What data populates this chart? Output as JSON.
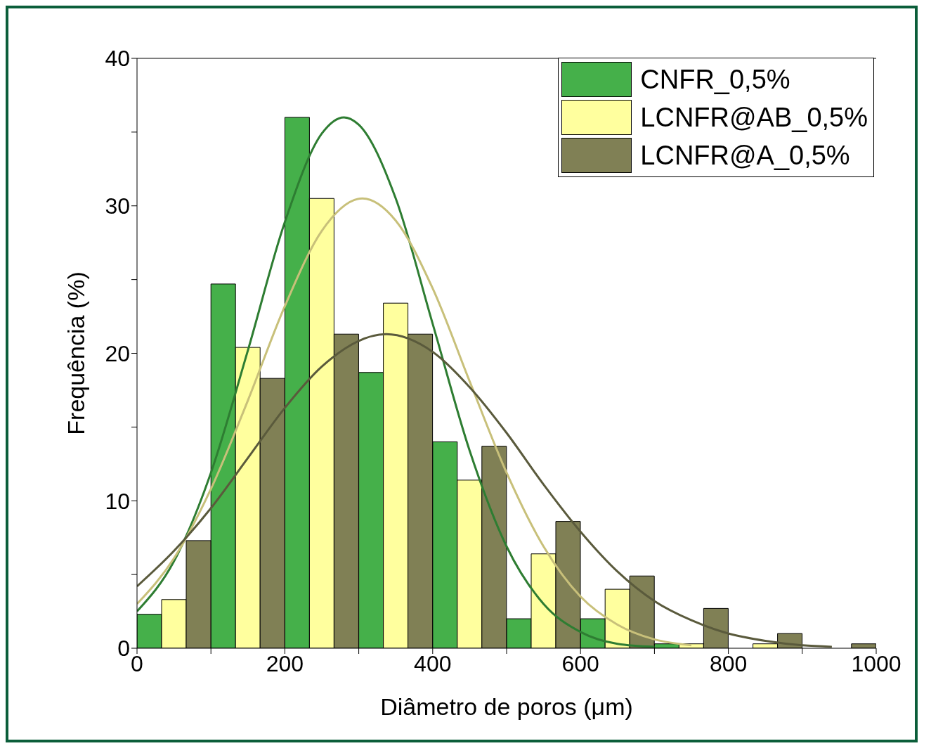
{
  "chart_data": {
    "type": "histogram",
    "xlabel": "Diâmetro de poros (μm)",
    "ylabel": "Frequência (%)",
    "bins": [
      0,
      100,
      200,
      300,
      400,
      500,
      600,
      700,
      800,
      900,
      1000
    ],
    "series": [
      {
        "name": "CNFR_0,5%",
        "color": "#45b04a",
        "values": [
          2.3,
          24.7,
          36,
          18.7,
          14,
          2,
          2,
          0.3,
          0,
          0
        ]
      },
      {
        "name": "LCNFR@AB_0,5%",
        "color": "#ffff9e",
        "values": [
          3.3,
          20.4,
          30.5,
          23.4,
          11.4,
          6.4,
          4,
          0.3,
          0.3,
          0
        ]
      },
      {
        "name": "LCNFR@A_0,5%",
        "color": "#808055",
        "values": [
          7.3,
          18.3,
          21.3,
          21.3,
          13.7,
          8.6,
          4.9,
          2.7,
          1,
          0.3
        ]
      },
      {
        "type": "line",
        "color": "#2e7d32",
        "x": [
          0,
          50,
          100,
          150,
          200,
          250,
          280,
          300,
          350,
          400,
          450,
          500,
          550,
          600,
          650,
          700
        ],
        "values": [
          2.5,
          5.9,
          11.9,
          20.2,
          28.9,
          34.9,
          36,
          35.5,
          30.5,
          22,
          13.4,
          6.9,
          3,
          1.1,
          0.3,
          0.1
        ]
      },
      {
        "type": "line",
        "color": "#c8c07a",
        "x": [
          0,
          50,
          100,
          150,
          200,
          250,
          305,
          350,
          400,
          450,
          500,
          550,
          600,
          650,
          700,
          750
        ],
        "values": [
          3,
          6.1,
          10.8,
          16.8,
          23.2,
          28.3,
          30.5,
          29,
          24.4,
          18.1,
          11.9,
          6.9,
          3.5,
          1.6,
          0.6,
          0.2
        ]
      },
      {
        "type": "line",
        "color": "#5a5a3c",
        "x": [
          0,
          50,
          100,
          150,
          200,
          250,
          337,
          400,
          450,
          500,
          550,
          600,
          650,
          700,
          750,
          800,
          850,
          900,
          940
        ],
        "values": [
          4.2,
          6.6,
          9.5,
          12.9,
          16.3,
          19.1,
          21.3,
          20.1,
          17.7,
          14.6,
          11.1,
          7.9,
          5.2,
          3.2,
          1.9,
          1,
          0.5,
          0.2,
          0.1
        ]
      }
    ],
    "xlim": [
      0,
      1000
    ],
    "ylim": [
      0,
      40
    ],
    "xticks": [
      0,
      {
        "value": 100,
        "label": null
      },
      200,
      {
        "value": 300,
        "label": null
      },
      400,
      {
        "value": 500,
        "label": null
      },
      600,
      {
        "value": 700,
        "label": null
      },
      800,
      {
        "value": 900,
        "label": null
      },
      1000
    ],
    "yticks": [
      0,
      {
        "value": 5,
        "label": null
      },
      10,
      {
        "value": 15,
        "label": null
      },
      20,
      {
        "value": 25,
        "label": null
      },
      30,
      {
        "value": 35,
        "label": null
      },
      40
    ],
    "legend": "top right"
  }
}
